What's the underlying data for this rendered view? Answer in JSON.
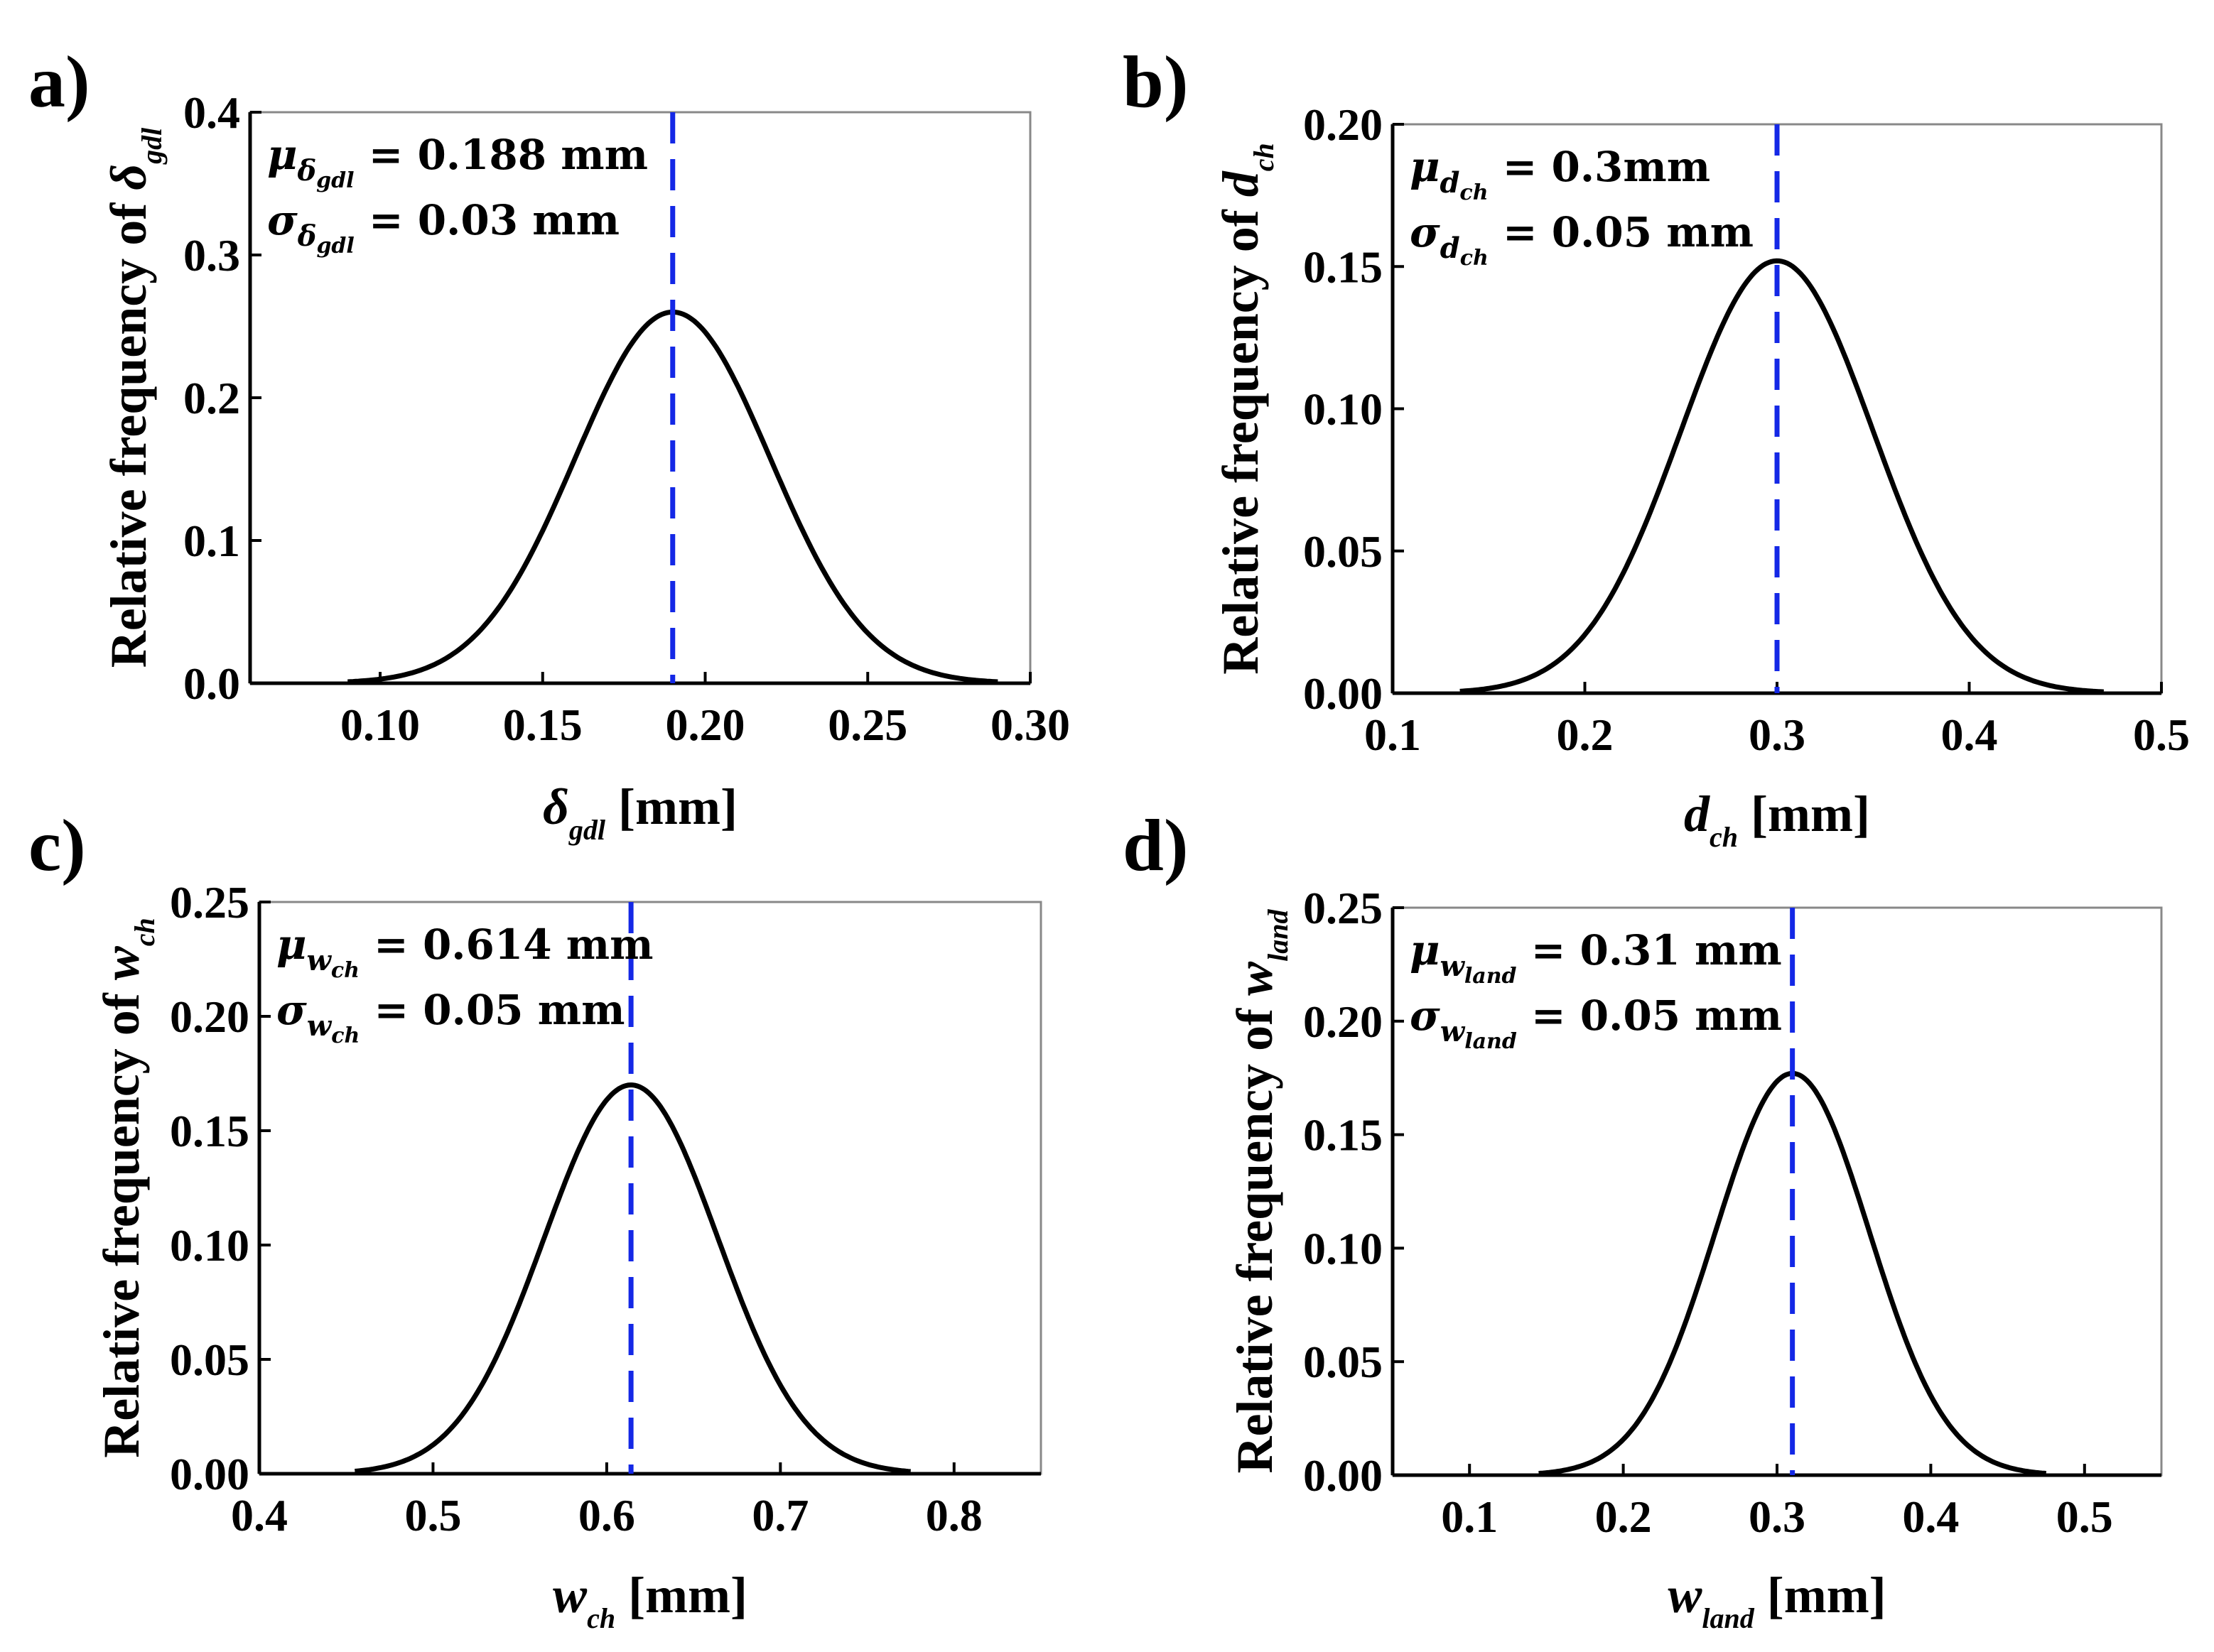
{
  "chart_data": [
    {
      "type": "line",
      "panel_label": "a)",
      "ylabel": "Relative frequency of",
      "ylabel_symbol": "δ",
      "ylabel_subscript": "gdl",
      "xlabel_symbol": "δ",
      "xlabel_subscript": "gdl",
      "xlabel_unit": "[mm]",
      "xlim": [
        0.06,
        0.3
      ],
      "ylim": [
        0.0,
        0.4
      ],
      "xticks": [
        0.1,
        0.15,
        0.2,
        0.25,
        0.3
      ],
      "xtick_labels": [
        "0.10",
        "0.15",
        "0.20",
        "0.25",
        "0.30"
      ],
      "yticks": [
        0.0,
        0.1,
        0.2,
        0.3,
        0.4
      ],
      "ytick_labels": [
        "0.0",
        "0.1",
        "0.2",
        "0.3",
        "0.4"
      ],
      "series": [
        {
          "name": "normal distribution",
          "mean": 0.19,
          "sd": 0.03,
          "peak": 0.26,
          "x_start": 0.09,
          "x_end": 0.29
        }
      ],
      "mean_line": {
        "x": 0.19,
        "style": "dashed"
      },
      "annotation_mu": {
        "symbol": "μ",
        "sub": "δ",
        "subsub": "gdl",
        "text": "= 0.188 mm"
      },
      "annotation_sigma": {
        "symbol": "σ",
        "sub": "δ",
        "subsub": "gdl",
        "text": "= 0.03 mm"
      }
    },
    {
      "type": "line",
      "panel_label": "b)",
      "ylabel": "Relative frequency of",
      "ylabel_symbol": "d",
      "ylabel_subscript": "ch",
      "xlabel_symbol": "d",
      "xlabel_subscript": "ch",
      "xlabel_unit": "[mm]",
      "xlim": [
        0.1,
        0.5
      ],
      "ylim": [
        0.0,
        0.2
      ],
      "xticks": [
        0.1,
        0.2,
        0.3,
        0.4,
        0.5
      ],
      "xtick_labels": [
        "0.1",
        "0.2",
        "0.3",
        "0.4",
        "0.5"
      ],
      "yticks": [
        0.0,
        0.05,
        0.1,
        0.15,
        0.2
      ],
      "ytick_labels": [
        "0.00",
        "0.05",
        "0.10",
        "0.15",
        "0.20"
      ],
      "series": [
        {
          "name": "normal distribution",
          "mean": 0.3,
          "sd": 0.05,
          "peak": 0.152,
          "x_start": 0.135,
          "x_end": 0.47
        }
      ],
      "mean_line": {
        "x": 0.3,
        "style": "dashed"
      },
      "annotation_mu": {
        "symbol": "μ",
        "sub": "d",
        "subsub": "ch",
        "text": "= 0.3mm"
      },
      "annotation_sigma": {
        "symbol": "σ",
        "sub": "d",
        "subsub": "ch",
        "text": "= 0.05 mm"
      }
    },
    {
      "type": "line",
      "panel_label": "c)",
      "ylabel": "Relative frequency of",
      "ylabel_symbol": "w",
      "ylabel_subscript": "ch",
      "xlabel_symbol": "w",
      "xlabel_subscript": "ch",
      "xlabel_unit": "[mm]",
      "xlim": [
        0.4,
        0.85
      ],
      "ylim": [
        0.0,
        0.25
      ],
      "xticks": [
        0.4,
        0.5,
        0.6,
        0.7,
        0.8
      ],
      "xtick_labels": [
        "0.4",
        "0.5",
        "0.6",
        "0.7",
        "0.8"
      ],
      "yticks": [
        0.0,
        0.05,
        0.1,
        0.15,
        0.2,
        0.25
      ],
      "ytick_labels": [
        "0.00",
        "0.05",
        "0.10",
        "0.15",
        "0.20",
        "0.25"
      ],
      "series": [
        {
          "name": "normal distribution",
          "mean": 0.614,
          "sd": 0.05,
          "peak": 0.17,
          "x_start": 0.455,
          "x_end": 0.775
        }
      ],
      "mean_line": {
        "x": 0.614,
        "style": "dashed"
      },
      "annotation_mu": {
        "symbol": "μ",
        "sub": "w",
        "subsub": "ch",
        "text": "= 0.614 mm"
      },
      "annotation_sigma": {
        "symbol": "σ",
        "sub": "w",
        "subsub": "ch",
        "text": "= 0.05 mm"
      }
    },
    {
      "type": "line",
      "panel_label": "d)",
      "ylabel": "Relative frequency of",
      "ylabel_symbol": "w",
      "ylabel_subscript": "land",
      "xlabel_symbol": "w",
      "xlabel_subscript": "land",
      "xlabel_unit": "[mm]",
      "xlim": [
        0.05,
        0.55
      ],
      "ylim": [
        0.0,
        0.25
      ],
      "xticks": [
        0.1,
        0.2,
        0.3,
        0.4,
        0.5
      ],
      "xtick_labels": [
        "0.1",
        "0.2",
        "0.3",
        "0.4",
        "0.5"
      ],
      "yticks": [
        0.0,
        0.05,
        0.1,
        0.15,
        0.2,
        0.25
      ],
      "ytick_labels": [
        "0.00",
        "0.05",
        "0.10",
        "0.15",
        "0.20",
        "0.25"
      ],
      "series": [
        {
          "name": "normal distribution",
          "mean": 0.31,
          "sd": 0.05,
          "peak": 0.177,
          "x_start": 0.145,
          "x_end": 0.475
        }
      ],
      "mean_line": {
        "x": 0.31,
        "style": "dashed"
      },
      "annotation_mu": {
        "symbol": "μ",
        "sub": "w",
        "subsub": "land",
        "text": "= 0.31 mm"
      },
      "annotation_sigma": {
        "symbol": "σ",
        "sub": "w",
        "subsub": "land",
        "text": "= 0.05 mm"
      }
    }
  ],
  "colors": {
    "curve": "#000000",
    "mean_line": "#1428e6",
    "axes": "#000000",
    "frame": "#888888"
  }
}
